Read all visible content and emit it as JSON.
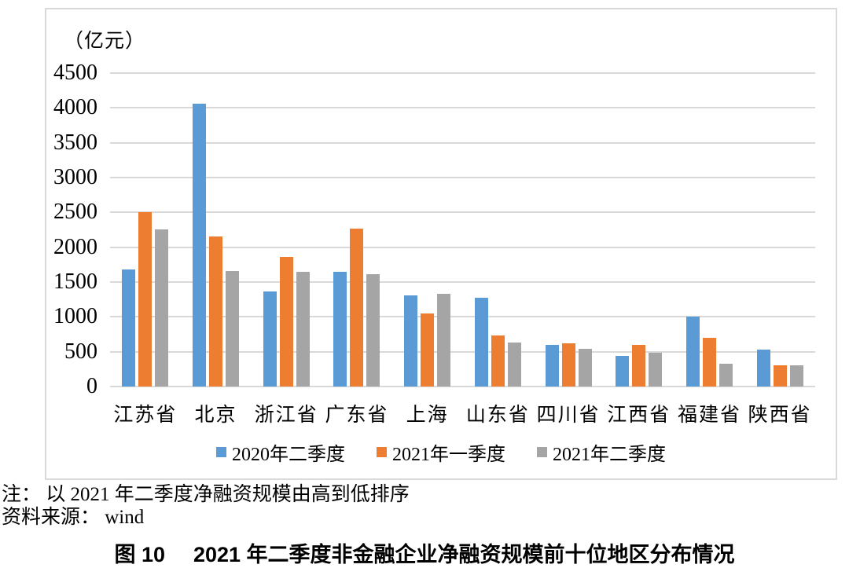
{
  "chart": {
    "unit_label": "（亿元）",
    "frame_border_color": "#d9d9d9",
    "gridline_color": "#d9d9d9"
  },
  "chart_data": {
    "type": "bar",
    "title": "",
    "xlabel": "",
    "ylabel": "（亿元）",
    "ylim": [
      0,
      4500
    ],
    "yticks": [
      0,
      500,
      1000,
      1500,
      2000,
      2500,
      3000,
      3500,
      4000,
      4500
    ],
    "grid": true,
    "legend_position": "bottom",
    "categories": [
      "江苏省",
      "北京",
      "浙江省",
      "广东省",
      "上海",
      "山东省",
      "四川省",
      "江西省",
      "福建省",
      "陕西省"
    ],
    "series": [
      {
        "name": "2020年二季度",
        "color": "#5B9BD5",
        "values": [
          1680,
          4060,
          1370,
          1650,
          1310,
          1270,
          600,
          440,
          1000,
          530
        ]
      },
      {
        "name": "2021年一季度",
        "color": "#ED7D31",
        "values": [
          2500,
          2150,
          1860,
          2270,
          1050,
          730,
          620,
          600,
          700,
          300
        ]
      },
      {
        "name": "2021年二季度",
        "color": "#A5A5A5",
        "values": [
          2260,
          1660,
          1650,
          1610,
          1330,
          630,
          540,
          490,
          330,
          310
        ]
      }
    ]
  },
  "notes": {
    "note1": "注： 以 2021 年二季度净融资规模由高到低排序",
    "note2": "资料来源： wind"
  },
  "caption": {
    "figure_label": "图 10",
    "text": "2021 年二季度非金融企业净融资规模前十位地区分布情况"
  }
}
